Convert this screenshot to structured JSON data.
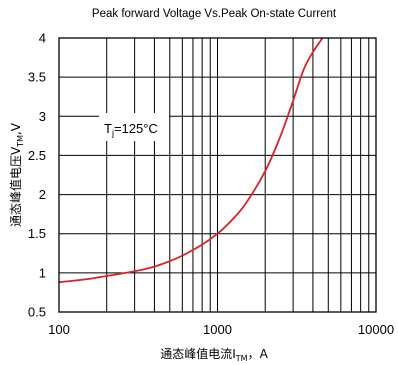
{
  "chart_data": {
    "type": "line",
    "title": "Peak forward Voltage Vs.Peak On-state Current",
    "xlabel": {
      "main": "通态峰值电流I",
      "sub": "TM",
      "tail": "，A"
    },
    "ylabel": {
      "main": "通态峰值电压V",
      "sub": "TM",
      "tail": ",V"
    },
    "x_scale": "log",
    "xlim": [
      100,
      10000
    ],
    "ylim": [
      0.5,
      4
    ],
    "x_ticks": [
      100,
      1000,
      10000
    ],
    "x_tick_labels": [
      "100",
      "1000",
      "10000"
    ],
    "y_ticks": [
      0.5,
      1,
      1.5,
      2,
      2.5,
      3,
      3.5,
      4
    ],
    "y_tick_labels": [
      "0.5",
      "1",
      "1.5",
      "2",
      "2.5",
      "3",
      "3.5",
      "4"
    ],
    "grid": true,
    "annotation": {
      "main": "T",
      "sub": "j",
      "tail": "=125°C"
    },
    "series": [
      {
        "color": "#d8232a",
        "x": [
          100,
          150,
          200,
          300,
          400,
          500,
          600,
          800,
          1000,
          1200,
          1500,
          2000,
          2500,
          3000,
          3500,
          4000,
          4600
        ],
        "y": [
          0.88,
          0.92,
          0.96,
          1.02,
          1.08,
          1.15,
          1.22,
          1.36,
          1.5,
          1.65,
          1.88,
          2.3,
          2.75,
          3.2,
          3.6,
          3.82,
          4.0
        ]
      }
    ]
  }
}
